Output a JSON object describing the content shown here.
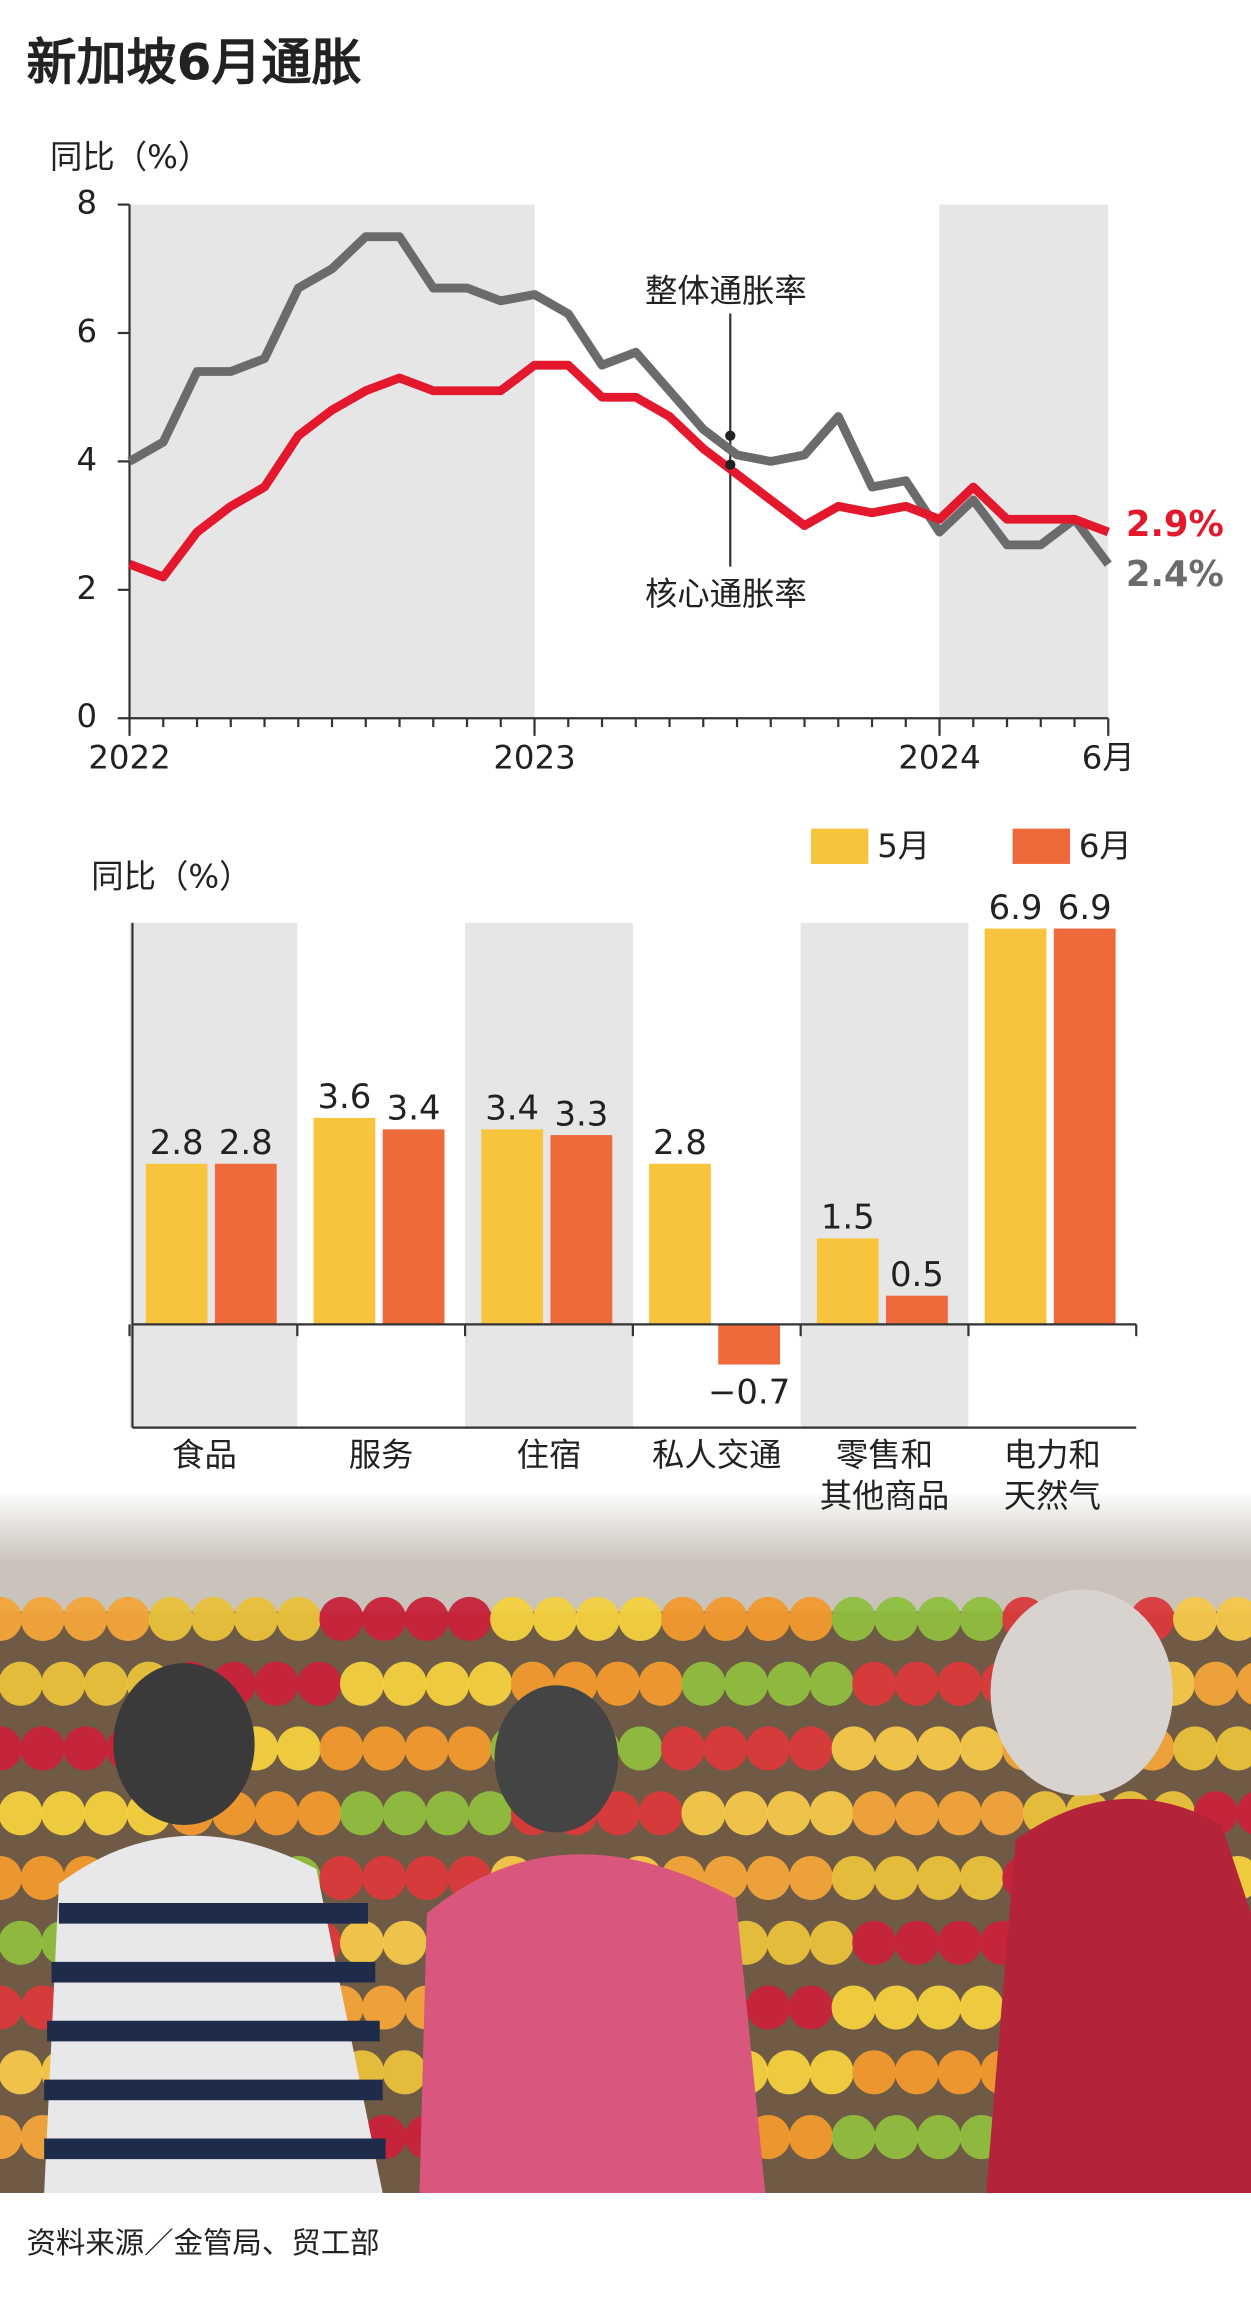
{
  "title": "新加坡6月通胀",
  "source": "资料来源／金管局、贸工部",
  "chart_data": [
    {
      "type": "line",
      "y_label": "同比（%）",
      "categories": [
        "2022",
        null,
        null,
        null,
        null,
        null,
        null,
        null,
        null,
        null,
        null,
        null,
        "2023",
        null,
        null,
        null,
        null,
        null,
        null,
        null,
        null,
        null,
        null,
        null,
        "2024",
        null,
        null,
        null,
        null,
        "6月"
      ],
      "ylim": [
        0,
        8
      ],
      "yticks": [
        0,
        2,
        4,
        6,
        8
      ],
      "series": [
        {
          "name": "整体通胀率",
          "color": "#6b6b6b",
          "values": [
            4.0,
            4.3,
            5.4,
            5.4,
            5.6,
            6.7,
            7.0,
            7.5,
            7.5,
            6.7,
            6.7,
            6.5,
            6.6,
            6.3,
            5.5,
            5.7,
            5.1,
            4.5,
            4.1,
            4.0,
            4.1,
            4.7,
            3.6,
            3.7,
            2.9,
            3.4,
            2.7,
            2.7,
            3.1,
            2.4
          ],
          "value_labels": [
            null,
            null,
            null,
            null,
            null,
            null,
            null,
            null,
            null,
            null,
            null,
            null,
            null,
            null,
            null,
            null,
            null,
            null,
            null,
            null,
            null,
            null,
            null,
            null,
            null,
            null,
            null,
            null,
            null,
            "2.4%"
          ]
        },
        {
          "name": "核心通胀率",
          "color": "#e3182d",
          "values": [
            2.4,
            2.2,
            2.9,
            3.3,
            3.6,
            4.4,
            4.8,
            5.1,
            5.3,
            5.1,
            5.1,
            5.1,
            5.5,
            5.5,
            5.0,
            5.0,
            4.7,
            4.2,
            3.8,
            3.4,
            3.0,
            3.3,
            3.2,
            3.3,
            3.1,
            3.6,
            3.1,
            3.1,
            3.1,
            2.9
          ],
          "value_labels": [
            null,
            null,
            null,
            null,
            null,
            null,
            null,
            null,
            null,
            null,
            null,
            null,
            null,
            null,
            null,
            null,
            null,
            null,
            null,
            null,
            null,
            null,
            null,
            null,
            null,
            null,
            null,
            null,
            null,
            "2.9%"
          ]
        }
      ]
    },
    {
      "type": "bar",
      "y_label": "同比（%）",
      "categories": [
        "食品",
        "服务",
        "住宿",
        "私人交通",
        "零售和\n其他商品",
        "电力和\n天然气"
      ],
      "ylim": [
        -1.8,
        7
      ],
      "series": [
        {
          "name": "5月",
          "color": "#f9c43d",
          "values": [
            2.8,
            3.6,
            3.4,
            2.8,
            1.5,
            6.9
          ]
        },
        {
          "name": "6月",
          "color": "#ef6a3a",
          "values": [
            2.8,
            3.4,
            3.3,
            -0.7,
            0.5,
            6.9
          ],
          "value_labels": [
            "2.8",
            "3.4",
            "3.3",
            "−0.7",
            "0.5",
            "6.9"
          ]
        }
      ]
    }
  ]
}
